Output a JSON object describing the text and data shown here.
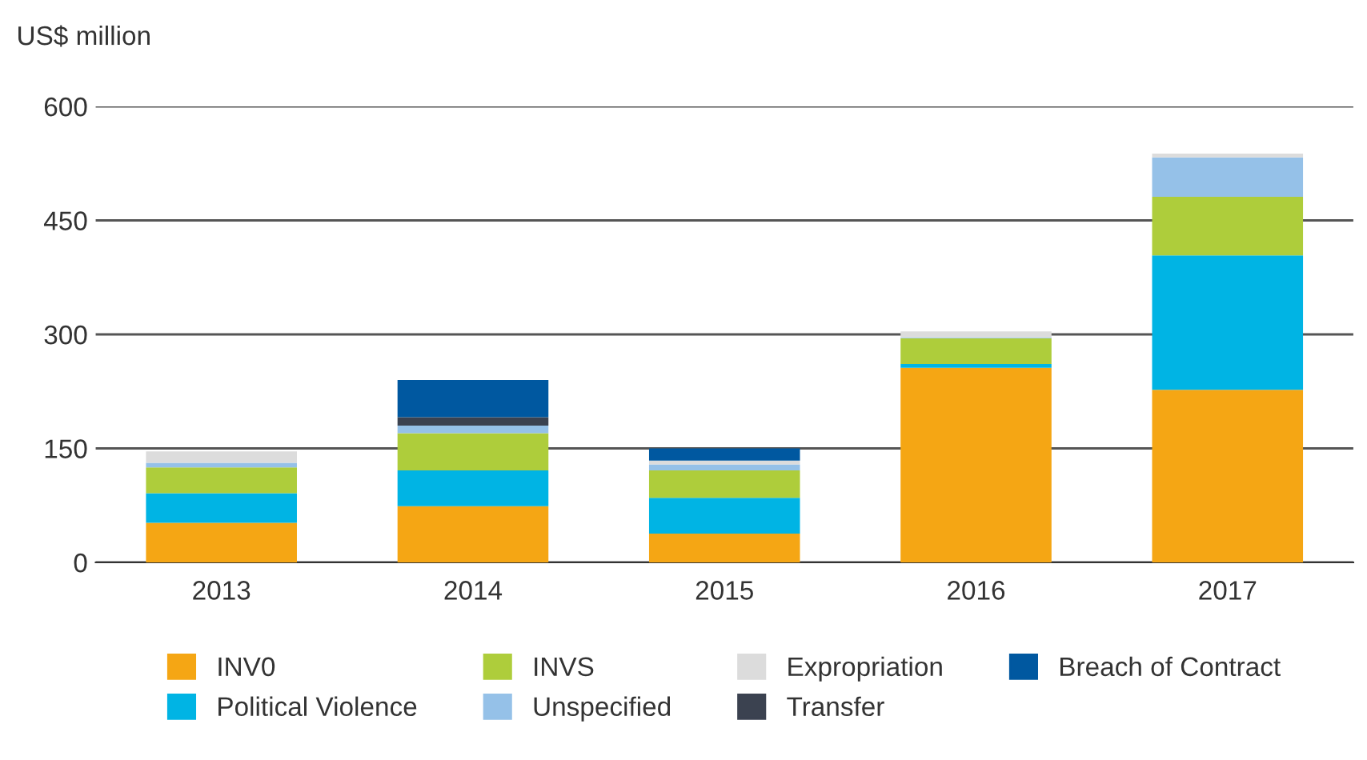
{
  "chart_data": {
    "type": "bar",
    "stacked": true,
    "ylabel": "US$ million",
    "categories": [
      "2013",
      "2014",
      "2015",
      "2016",
      "2017"
    ],
    "series": [
      {
        "name": "INV0",
        "color": "#f5a614",
        "values": [
          52,
          74,
          38,
          256,
          227
        ]
      },
      {
        "name": "Political Violence",
        "color": "#00b4e4",
        "values": [
          39,
          47,
          47,
          5,
          177
        ]
      },
      {
        "name": "INVS",
        "color": "#aecd3b",
        "values": [
          34,
          49,
          36,
          34,
          77
        ]
      },
      {
        "name": "Unspecified",
        "color": "#95c1e8",
        "values": [
          6,
          10,
          8,
          1,
          52
        ]
      },
      {
        "name": "Expropriation",
        "color": "#dcdcdc",
        "values": [
          15,
          0,
          5,
          8,
          5
        ]
      },
      {
        "name": "Transfer",
        "color": "#3b4250",
        "values": [
          0,
          11,
          0,
          0,
          0
        ]
      },
      {
        "name": "Breach of Contract",
        "color": "#0058a0",
        "values": [
          0,
          49,
          16,
          0,
          0
        ]
      }
    ],
    "ylim": [
      0,
      600
    ],
    "yticks": [
      0,
      150,
      300,
      450,
      600
    ],
    "grid": "y",
    "legend": "bottom"
  }
}
